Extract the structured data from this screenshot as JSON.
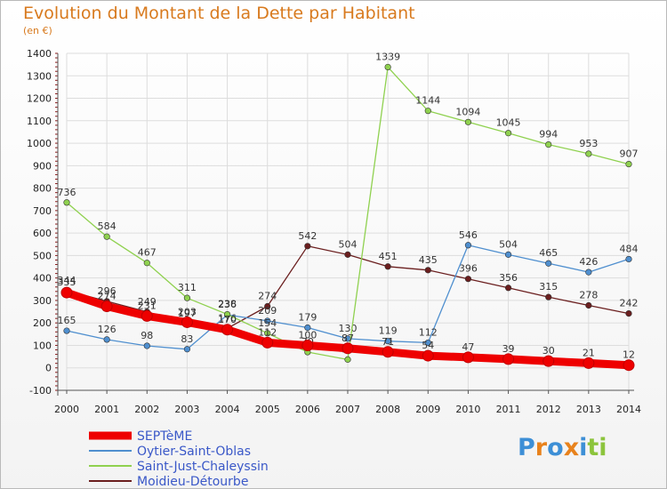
{
  "header": {
    "title": "Evolution du Montant de la Dette par Habitant",
    "unit": "(en €)"
  },
  "logo": {
    "letters": [
      "P",
      "r",
      "o",
      "x",
      "i",
      "t",
      "i"
    ],
    "colors": [
      "#3d8fd6",
      "#e8821c",
      "#3d8fd6",
      "#e8821c",
      "#3d8fd6",
      "#8cc43c",
      "#8cc43c"
    ]
  },
  "colors": {
    "background": "#ffffff",
    "axis": "#555555",
    "grid": "#dddddd",
    "tick": "#8b1a1a"
  },
  "chart_data": {
    "type": "line",
    "title": "Evolution du Montant de la Dette par Habitant",
    "ylabel": "(en €)",
    "xlabel": "",
    "ylim": [
      -100,
      1400
    ],
    "yticks": [
      "-100",
      "0",
      "100",
      "200",
      "300",
      "400",
      "500",
      "600",
      "700",
      "800",
      "900",
      "1000",
      "1100",
      "1200",
      "1300",
      "1400"
    ],
    "x": [
      "2000",
      "2001",
      "2002",
      "2003",
      "2004",
      "2005",
      "2006",
      "2007",
      "2008",
      "2009",
      "2010",
      "2011",
      "2012",
      "2013",
      "2014"
    ],
    "legend_position": "bottom-left",
    "grid": true,
    "series": [
      {
        "name": "Moidieu-Détourbe",
        "color": "#6b1f1f",
        "values": [
          344,
          296,
          249,
          197,
          176,
          274,
          542,
          504,
          451,
          435,
          396,
          356,
          315,
          278,
          242
        ],
        "labels": [
          "344",
          "296",
          "249",
          "197",
          "176",
          "274",
          "542",
          "504",
          "451",
          "435",
          "396",
          "356",
          "315",
          "278",
          "242"
        ]
      },
      {
        "name": "Oytier-Saint-Oblas",
        "color": "#4f8fcf",
        "values": [
          165,
          126,
          98,
          83,
          236,
          209,
          179,
          130,
          119,
          112,
          546,
          504,
          465,
          426,
          484
        ],
        "labels": [
          "165",
          "126",
          "98",
          "83",
          "236",
          "209",
          "179",
          "130",
          "119",
          "112",
          "546",
          "504",
          "465",
          "426",
          "484"
        ]
      },
      {
        "name": "Saint-Just-Chaleyssin",
        "color": "#8fd14f",
        "values": [
          736,
          584,
          467,
          311,
          238,
          154,
          70,
          37,
          1339,
          1144,
          1094,
          1045,
          994,
          953,
          907
        ],
        "labels": [
          "736",
          "584",
          "467",
          "311",
          "238",
          "154",
          "70",
          "37",
          "1339",
          "1144",
          "1094",
          "1045",
          "994",
          "953",
          "907"
        ]
      },
      {
        "name": "SEPTèME",
        "color": "#ee0000",
        "values": [
          335,
          274,
          231,
          203,
          170,
          112,
          100,
          87,
          71,
          54,
          47,
          39,
          30,
          21,
          12
        ],
        "labels": [
          "335",
          "274",
          "231",
          "203",
          "170",
          "112",
          "100",
          "87",
          "71",
          "54",
          "47",
          "39",
          "30",
          "21",
          "12"
        ]
      }
    ],
    "legend": [
      "SEPTèME",
      "Oytier-Saint-Oblas",
      "Saint-Just-Chaleyssin",
      "Moidieu-Détourbe"
    ]
  }
}
